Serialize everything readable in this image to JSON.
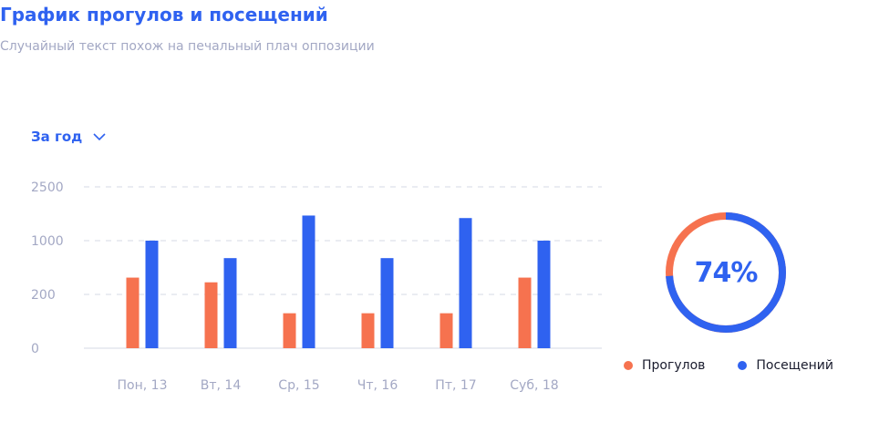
{
  "header": {
    "title": "График прогулов и посещений",
    "subtitle": "Случайный текст похож на печальный плач оппозиции"
  },
  "period_selector": {
    "label": "За год",
    "icon": "chevron-down-icon"
  },
  "colors": {
    "absences": "#f6724f",
    "visits": "#2f62f0",
    "grid": "#d5d8e6",
    "tick_text": "#a3a8c4"
  },
  "chart_data": {
    "type": "bar",
    "categories": [
      "Пон, 13",
      "Вт, 14",
      "Ср, 15",
      "Чт, 16",
      "Пт, 17",
      "Суб, 18"
    ],
    "y_ticks": [
      "0",
      "200",
      "1000",
      "2500"
    ],
    "y_tick_values": [
      0,
      200,
      1000,
      2500
    ],
    "ylim": [
      0,
      2500
    ],
    "grid": true,
    "legend_position": "bottom-right",
    "series": [
      {
        "name": "Прогулов",
        "values": [
          450,
          380,
          130,
          130,
          130,
          450
        ]
      },
      {
        "name": "Посещений",
        "values": [
          1000,
          740,
          1700,
          740,
          1630,
          1000
        ]
      }
    ]
  },
  "donut": {
    "value_label": "74%",
    "fraction": 0.74,
    "colors": [
      "#2f62f0",
      "#f6724f"
    ]
  },
  "legend": [
    {
      "label": "Прогулов",
      "color": "#f6724f"
    },
    {
      "label": "Посещений",
      "color": "#2f62f0"
    }
  ]
}
